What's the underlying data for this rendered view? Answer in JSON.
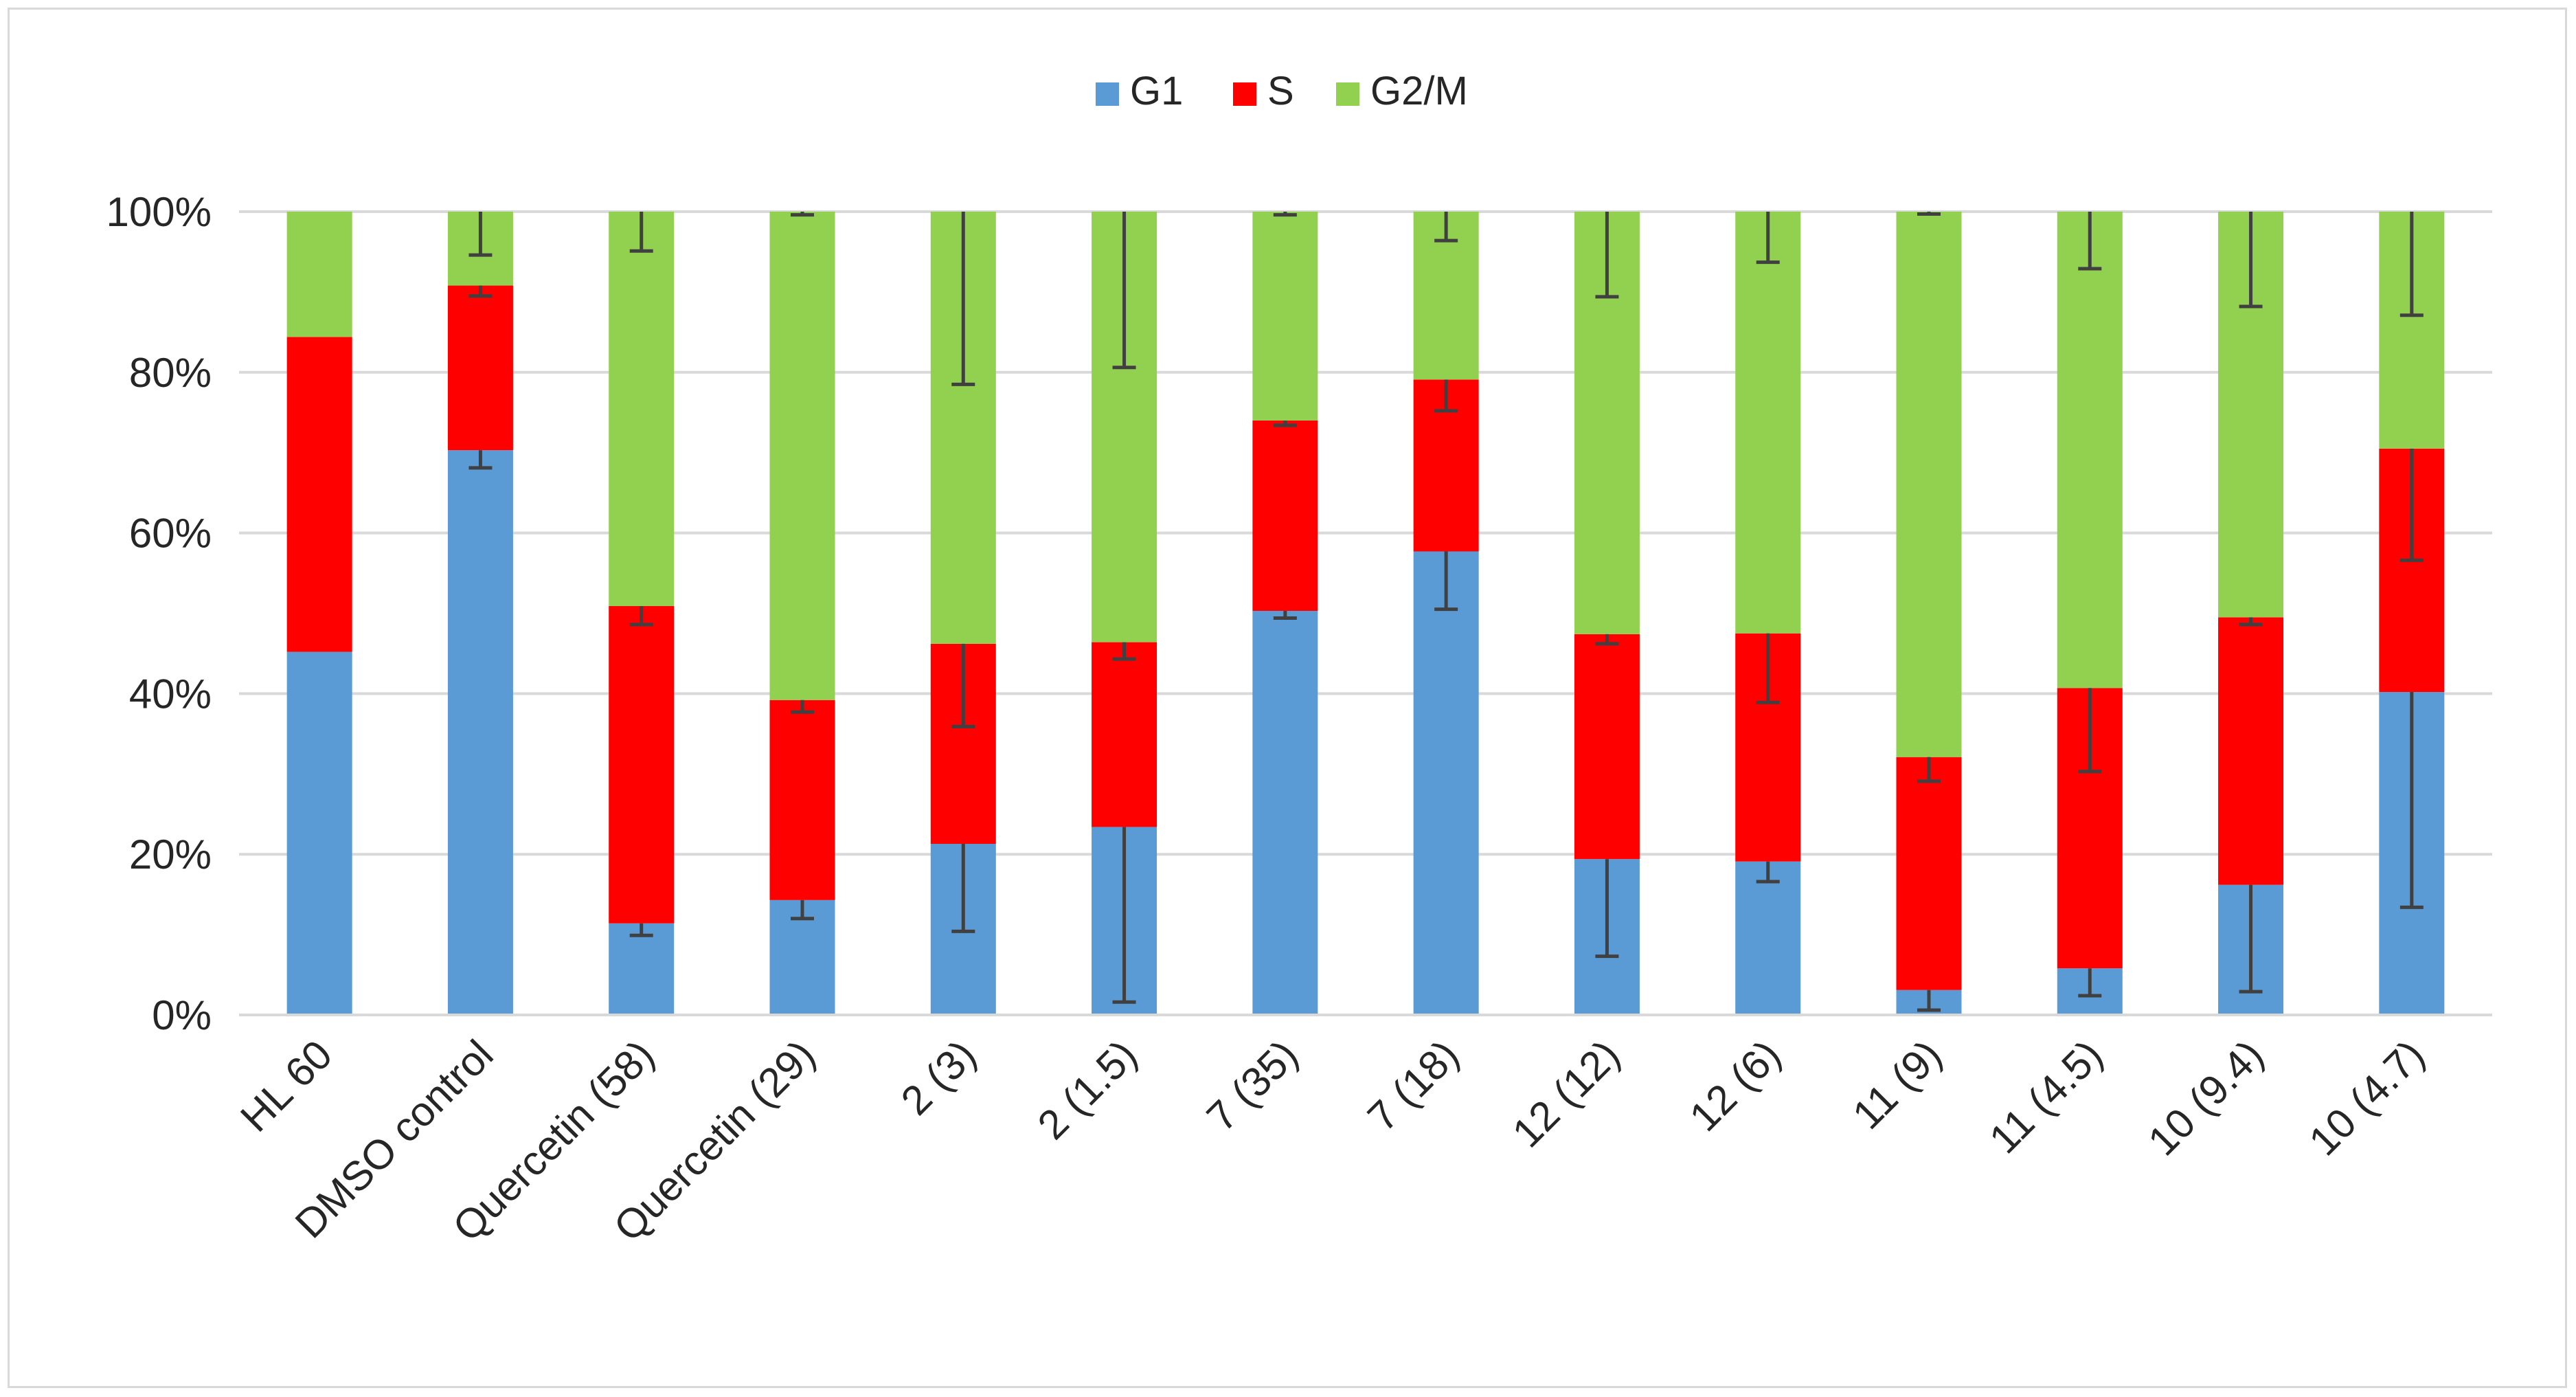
{
  "chart_data": {
    "type": "bar",
    "stacked": true,
    "percent_stacked": true,
    "title": "",
    "xlabel": "",
    "ylabel": "",
    "ylim": [
      0,
      100
    ],
    "y_ticks": [
      0,
      20,
      40,
      60,
      80,
      100
    ],
    "y_tick_labels": [
      "0%",
      "20%",
      "40%",
      "60%",
      "80%",
      "100%"
    ],
    "grid": true,
    "legend_position": "top-center",
    "categories": [
      "HL 60",
      "DMSO control",
      "Quercetin (58)",
      "Quercetin (29)",
      "2 (3)",
      "2 (1.5)",
      "7 (35)",
      "7 (18)",
      "12 (12)",
      "12 (6)",
      "11 (9)",
      "11 (4.5)",
      "10 (9.4)",
      "10 (4.7)"
    ],
    "series": [
      {
        "name": "G1",
        "color": "#5b9bd5",
        "values": [
          45.2,
          70.3,
          11.4,
          14.3,
          21.3,
          23.4,
          50.3,
          57.7,
          19.4,
          19.1,
          3.1,
          5.8,
          16.2,
          40.2
        ],
        "error": [
          0,
          2.2,
          1.5,
          2.3,
          10.9,
          21.8,
          0.9,
          7.2,
          12.1,
          2.5,
          2.5,
          3.4,
          13.3,
          26.8
        ]
      },
      {
        "name": "S",
        "color": "#ff0000",
        "values": [
          39.2,
          20.5,
          39.5,
          24.9,
          24.9,
          23.0,
          23.7,
          21.4,
          28.0,
          28.4,
          29.0,
          34.9,
          33.3,
          30.3
        ],
        "error": [
          0,
          1.3,
          2.3,
          1.5,
          10.3,
          2.1,
          0.6,
          3.9,
          1.2,
          8.6,
          3.0,
          10.4,
          0.9,
          13.9
        ]
      },
      {
        "name": "G2/M",
        "color": "#92d050",
        "values": [
          15.6,
          9.2,
          49.1,
          60.8,
          53.8,
          53.6,
          26.0,
          20.9,
          52.6,
          52.5,
          67.9,
          59.3,
          50.5,
          29.5
        ],
        "error": [
          0,
          5.4,
          4.9,
          0.4,
          21.5,
          19.4,
          0.4,
          3.6,
          10.6,
          6.3,
          0.3,
          7.1,
          11.8,
          12.9
        ]
      }
    ]
  }
}
